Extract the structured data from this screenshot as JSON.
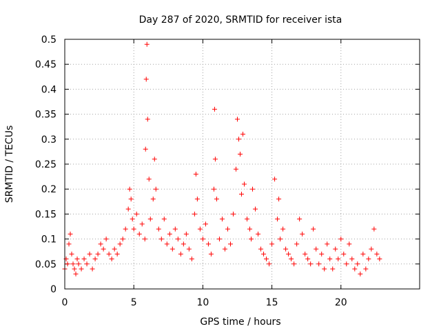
{
  "chart_data": {
    "type": "scatter",
    "title": "Day 287 of 2020, SRMTID for receiver ista",
    "xlabel": "GPS time / hours",
    "ylabel": "SRMTID / TECUs",
    "xlim": [
      0,
      25.7
    ],
    "ylim": [
      0,
      0.5
    ],
    "grid": true,
    "x_ticks": [
      {
        "value": 0,
        "label": "0"
      },
      {
        "value": 5,
        "label": "5"
      },
      {
        "value": 10,
        "label": "10"
      },
      {
        "value": 15,
        "label": "15"
      },
      {
        "value": 20,
        "label": "20"
      }
    ],
    "y_ticks": [
      {
        "value": 0,
        "label": "0"
      },
      {
        "value": 0.05,
        "label": "0.05"
      },
      {
        "value": 0.1,
        "label": "0.1"
      },
      {
        "value": 0.15,
        "label": "0.15"
      },
      {
        "value": 0.2,
        "label": "0.2"
      },
      {
        "value": 0.25,
        "label": "0.25"
      },
      {
        "value": 0.3,
        "label": "0.3"
      },
      {
        "value": 0.35,
        "label": "0.35"
      },
      {
        "value": 0.4,
        "label": "0.4"
      },
      {
        "value": 0.45,
        "label": "0.45"
      },
      {
        "value": 0.5,
        "label": "0.5"
      }
    ],
    "series": [
      {
        "name": "SRMTID",
        "color": "#ff0000",
        "marker": "plus",
        "x": [
          0.0,
          0.1,
          0.2,
          0.3,
          0.4,
          0.5,
          0.6,
          0.7,
          0.8,
          0.9,
          1.0,
          1.2,
          1.4,
          1.6,
          1.8,
          2.0,
          2.2,
          2.4,
          2.6,
          2.8,
          3.0,
          3.2,
          3.4,
          3.6,
          3.8,
          4.0,
          4.2,
          4.4,
          4.6,
          4.7,
          4.8,
          4.9,
          5.0,
          5.2,
          5.4,
          5.6,
          5.8,
          5.85,
          5.9,
          5.95,
          6.0,
          6.1,
          6.2,
          6.4,
          6.5,
          6.6,
          6.8,
          7.0,
          7.2,
          7.4,
          7.6,
          7.8,
          8.0,
          8.2,
          8.4,
          8.6,
          8.8,
          9.0,
          9.2,
          9.4,
          9.5,
          9.6,
          9.8,
          10.0,
          10.2,
          10.4,
          10.6,
          10.8,
          10.85,
          10.9,
          11.0,
          11.2,
          11.4,
          11.6,
          11.8,
          12.0,
          12.2,
          12.4,
          12.5,
          12.6,
          12.7,
          12.8,
          12.9,
          13.0,
          13.2,
          13.4,
          13.5,
          13.6,
          13.8,
          14.0,
          14.2,
          14.4,
          14.6,
          14.8,
          15.0,
          15.2,
          15.4,
          15.5,
          15.6,
          15.8,
          16.0,
          16.2,
          16.4,
          16.6,
          16.8,
          17.0,
          17.2,
          17.4,
          17.6,
          17.8,
          18.0,
          18.2,
          18.4,
          18.6,
          18.8,
          19.0,
          19.2,
          19.4,
          19.6,
          19.8,
          20.0,
          20.2,
          20.4,
          20.6,
          20.8,
          21.0,
          21.2,
          21.4,
          21.6,
          21.8,
          22.0,
          22.2,
          22.4,
          22.6,
          22.8
        ],
        "y": [
          0.04,
          0.06,
          0.05,
          0.09,
          0.11,
          0.07,
          0.05,
          0.04,
          0.03,
          0.06,
          0.05,
          0.04,
          0.06,
          0.05,
          0.07,
          0.04,
          0.06,
          0.07,
          0.09,
          0.08,
          0.1,
          0.07,
          0.06,
          0.08,
          0.07,
          0.09,
          0.1,
          0.12,
          0.16,
          0.2,
          0.18,
          0.14,
          0.12,
          0.15,
          0.11,
          0.13,
          0.1,
          0.28,
          0.42,
          0.49,
          0.34,
          0.22,
          0.14,
          0.18,
          0.26,
          0.2,
          0.12,
          0.1,
          0.14,
          0.09,
          0.11,
          0.08,
          0.12,
          0.1,
          0.07,
          0.09,
          0.11,
          0.08,
          0.06,
          0.15,
          0.23,
          0.18,
          0.12,
          0.1,
          0.13,
          0.09,
          0.07,
          0.2,
          0.36,
          0.26,
          0.18,
          0.1,
          0.14,
          0.08,
          0.12,
          0.09,
          0.15,
          0.24,
          0.34,
          0.3,
          0.27,
          0.19,
          0.31,
          0.21,
          0.14,
          0.12,
          0.1,
          0.2,
          0.16,
          0.11,
          0.08,
          0.07,
          0.06,
          0.05,
          0.09,
          0.22,
          0.14,
          0.18,
          0.1,
          0.12,
          0.08,
          0.07,
          0.06,
          0.05,
          0.09,
          0.14,
          0.11,
          0.07,
          0.06,
          0.05,
          0.12,
          0.08,
          0.05,
          0.07,
          0.04,
          0.09,
          0.06,
          0.04,
          0.08,
          0.06,
          0.1,
          0.07,
          0.05,
          0.09,
          0.06,
          0.04,
          0.05,
          0.03,
          0.07,
          0.04,
          0.06,
          0.08,
          0.12,
          0.07,
          0.06
        ]
      }
    ]
  }
}
